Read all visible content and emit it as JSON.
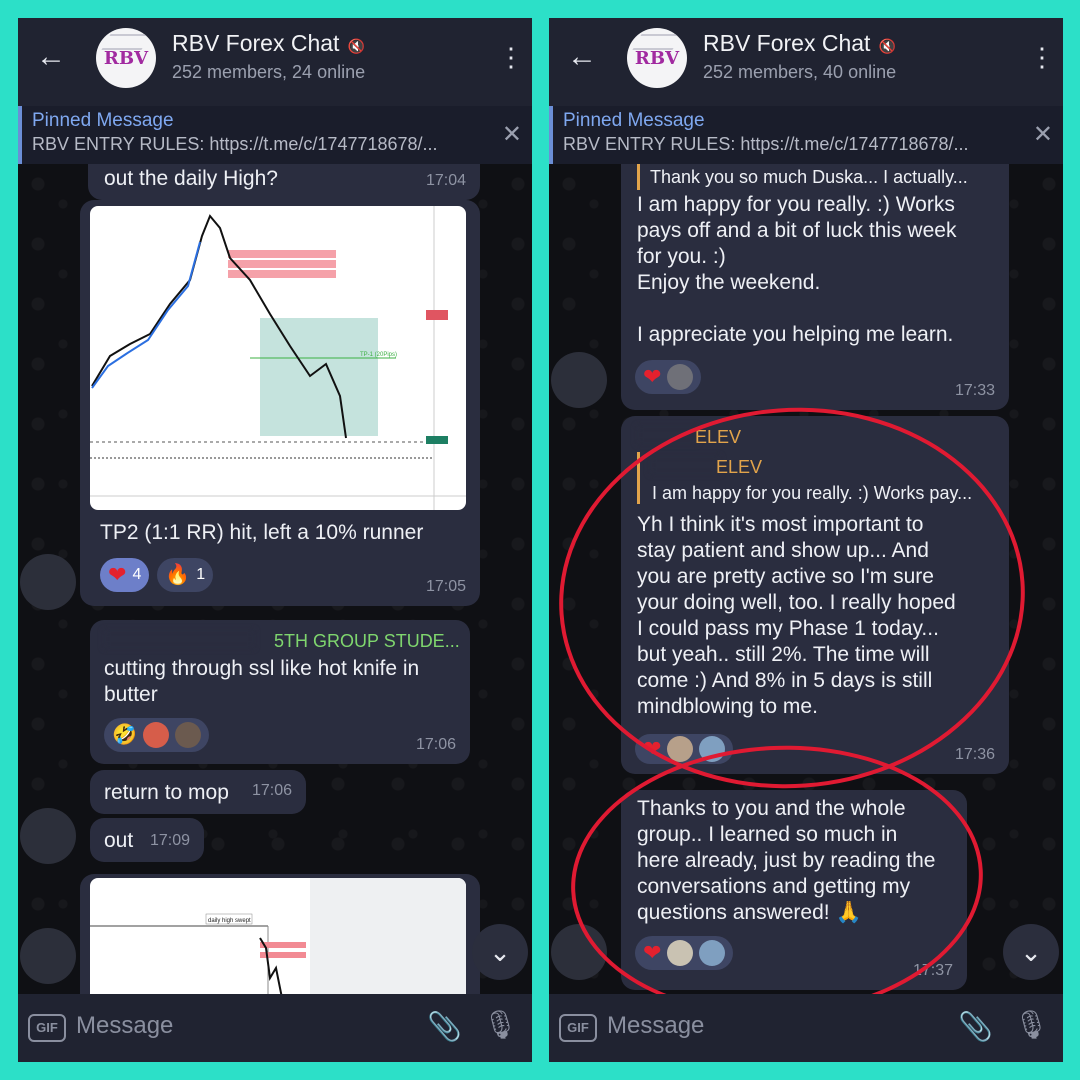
{
  "colors": {
    "border": "#2ce0c8",
    "chat_bg": "#0f1014",
    "bubble": "#2a2d3f",
    "accent_blue": "#7fa8f0",
    "heart_red": "#e5212e",
    "annotation_red": "#e01a32"
  },
  "left": {
    "header": {
      "title": "RBV Forex Chat",
      "subtitle": "252 members, 24 online",
      "avatar_logo": "RBV"
    },
    "pinned": {
      "label": "Pinned Message",
      "text": "RBV ENTRY RULES: https://t.me/c/1747718678/..."
    },
    "messages": [
      {
        "text": "out the daily High?",
        "time": "17:04"
      },
      {
        "text": "TP2 (1:1 RR) hit, left a 10% runner",
        "time": "17:05",
        "reactions": [
          {
            "icon": "heart-icon",
            "count": "4"
          },
          {
            "icon": "fire-icon",
            "count": "1"
          }
        ]
      },
      {
        "sender": "5TH GROUP STUDE...",
        "text": "cutting through ssl like hot knife in butter",
        "time": "17:06",
        "reactions": [
          {
            "icon": "laughing-emoji-icon"
          }
        ]
      },
      {
        "text": "return to mop",
        "time": "17:06"
      },
      {
        "text": "out",
        "time": "17:09"
      }
    ],
    "chart1": {
      "tp_label": "TP-1 (20Pips)"
    },
    "chart2": {
      "label": "daily high swept"
    },
    "input_placeholder": "Message",
    "gif_label": "GIF"
  },
  "right": {
    "header": {
      "title": "RBV Forex Chat",
      "subtitle": "252 members, 40 online",
      "avatar_logo": "RBV"
    },
    "pinned": {
      "label": "Pinned Message",
      "text": "RBV ENTRY RULES: https://t.me/c/1747718678/..."
    },
    "msg1": {
      "quote": "Thank you so much Duska... I actually...",
      "lines": [
        "I am happy for you really. :) Works",
        "pays off and a bit of luck this week",
        "for  you. :)",
        "Enjoy the weekend.",
        "",
        "I appreciate you helping me learn."
      ],
      "time": "17:33"
    },
    "msg2": {
      "sender": "ELEV",
      "quote_sender": "ELEV",
      "quote": "I am happy for you really. :) Works pay...",
      "lines": [
        "Yh I think it's most important to",
        "stay patient and show up... And",
        "you are pretty active so I'm sure",
        "your doing well, too. I really hoped",
        "I could pass my Phase 1 today...",
        "but yeah.. still 2%. The time will",
        "come :) And 8% in 5 days is still",
        "mindblowing to me."
      ],
      "time": "17:36"
    },
    "msg3": {
      "lines": [
        "Thanks to you and the whole",
        "group.. I learned so much in",
        "here already, just by reading the",
        "conversations and getting my",
        "questions answered! 🙏"
      ],
      "time": "17:37"
    },
    "input_placeholder": "Message",
    "gif_label": "GIF"
  }
}
